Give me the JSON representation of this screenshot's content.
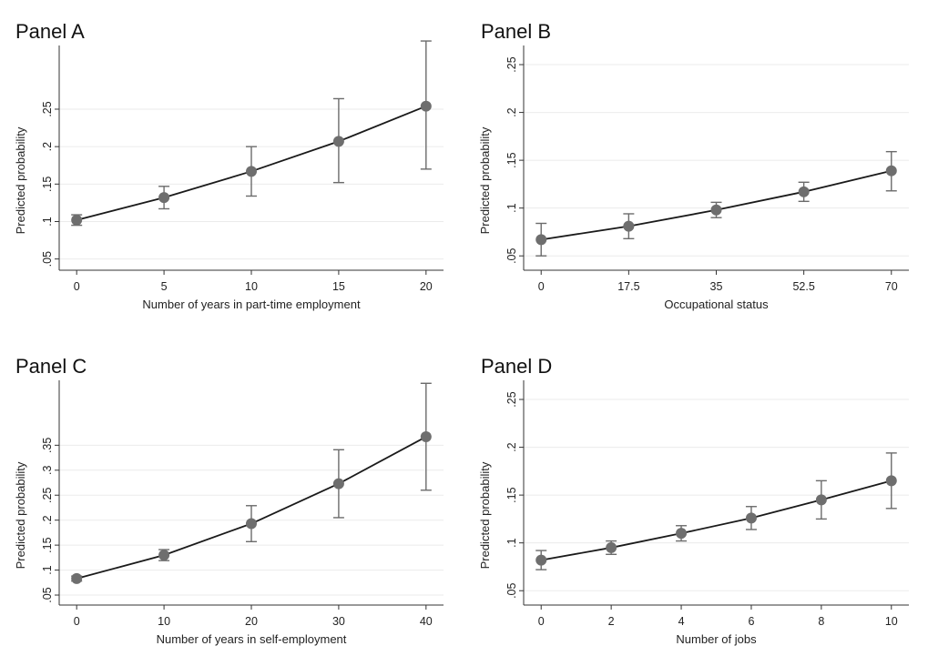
{
  "chart_data": [
    {
      "type": "line",
      "title": "Panel A",
      "xlabel": "Number of years in part-time employment",
      "ylabel": "Predicted probability",
      "x": [
        0,
        5,
        10,
        15,
        20
      ],
      "xticks": [
        0,
        5,
        10,
        15,
        20
      ],
      "xtick_labels": [
        "0",
        "5",
        "10",
        "15",
        "20"
      ],
      "xlim": [
        -1,
        21
      ],
      "yticks": [
        0.05,
        0.1,
        0.15,
        0.2,
        0.25
      ],
      "ytick_labels": [
        ".05",
        ".1",
        ".15",
        ".2",
        ".25"
      ],
      "ylim": [
        0.035,
        0.335
      ],
      "grid": true,
      "series": [
        {
          "values": [
            0.102,
            0.132,
            0.167,
            0.207,
            0.254
          ],
          "lower": [
            0.095,
            0.117,
            0.134,
            0.152,
            0.17
          ],
          "upper": [
            0.109,
            0.147,
            0.2,
            0.264,
            0.341
          ]
        }
      ]
    },
    {
      "type": "line",
      "title": "Panel B",
      "xlabel": "Occupational status",
      "ylabel": "Predicted probability",
      "x": [
        0,
        17.5,
        35,
        52.5,
        70
      ],
      "xticks": [
        0,
        17.5,
        35,
        52.5,
        70
      ],
      "xtick_labels": [
        "0",
        "17.5",
        "35",
        "52.5",
        "70"
      ],
      "xlim": [
        -3.5,
        73.5
      ],
      "yticks": [
        0.05,
        0.1,
        0.15,
        0.2,
        0.25
      ],
      "ytick_labels": [
        ".05",
        ".1",
        ".15",
        ".2",
        ".25"
      ],
      "ylim": [
        0.035,
        0.27
      ],
      "grid": true,
      "series": [
        {
          "values": [
            0.067,
            0.081,
            0.098,
            0.117,
            0.139
          ],
          "lower": [
            0.05,
            0.068,
            0.09,
            0.107,
            0.118
          ],
          "upper": [
            0.084,
            0.094,
            0.106,
            0.127,
            0.159
          ]
        }
      ]
    },
    {
      "type": "line",
      "title": "Panel C",
      "xlabel": "Number of years in self-employment",
      "ylabel": "Predicted probability",
      "x": [
        0,
        10,
        20,
        30,
        40
      ],
      "xticks": [
        0,
        10,
        20,
        30,
        40
      ],
      "xtick_labels": [
        "0",
        "10",
        "20",
        "30",
        "40"
      ],
      "xlim": [
        -2,
        42
      ],
      "yticks": [
        0.05,
        0.1,
        0.15,
        0.2,
        0.25,
        0.3,
        0.35
      ],
      "ytick_labels": [
        ".05",
        ".1",
        ".15",
        ".2",
        ".25",
        ".3",
        ".35"
      ],
      "ylim": [
        0.03,
        0.48
      ],
      "grid": true,
      "series": [
        {
          "values": [
            0.083,
            0.13,
            0.193,
            0.273,
            0.367
          ],
          "lower": [
            0.078,
            0.119,
            0.157,
            0.205,
            0.26
          ],
          "upper": [
            0.088,
            0.141,
            0.229,
            0.341,
            0.474
          ]
        }
      ]
    },
    {
      "type": "line",
      "title": "Panel D",
      "xlabel": "Number of jobs",
      "ylabel": "Predicted probability",
      "x": [
        0,
        2,
        4,
        6,
        8,
        10
      ],
      "xticks": [
        0,
        2,
        4,
        6,
        8,
        10
      ],
      "xtick_labels": [
        "0",
        "2",
        "4",
        "6",
        "8",
        "10"
      ],
      "xlim": [
        -0.5,
        10.5
      ],
      "yticks": [
        0.05,
        0.1,
        0.15,
        0.2,
        0.25
      ],
      "ytick_labels": [
        ".05",
        ".1",
        ".15",
        ".2",
        ".25"
      ],
      "ylim": [
        0.035,
        0.27
      ],
      "grid": true,
      "series": [
        {
          "values": [
            0.082,
            0.095,
            0.11,
            0.126,
            0.145,
            0.165
          ],
          "lower": [
            0.072,
            0.088,
            0.102,
            0.114,
            0.125,
            0.136
          ],
          "upper": [
            0.092,
            0.102,
            0.118,
            0.138,
            0.165,
            0.194
          ]
        }
      ]
    }
  ],
  "colors": {
    "marker": "#6e6e6e",
    "line": "#1a1a1a",
    "errorbar": "#6b6b6b",
    "grid": "#ebebeb",
    "axis": "#333333"
  }
}
